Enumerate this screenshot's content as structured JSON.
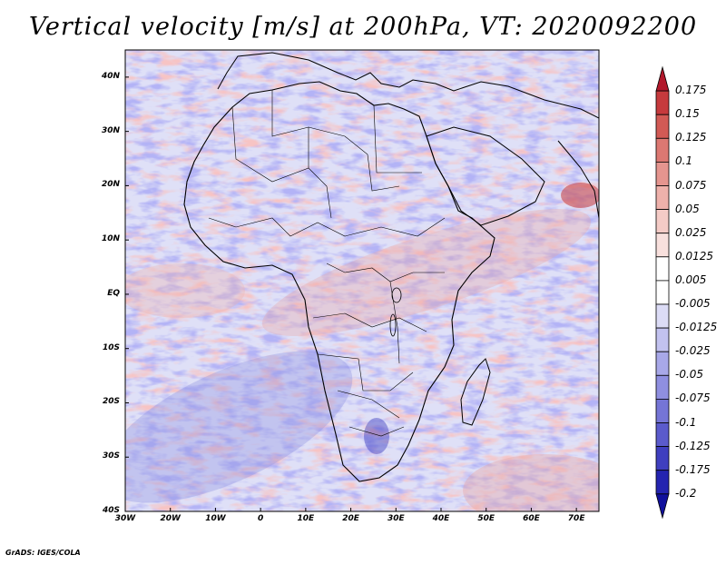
{
  "title": "Vertical velocity [m/s] at 200hPa, VT: 2020092200",
  "credit": "GrADS: IGES/COLA",
  "map": {
    "lat_labels": [
      "40N",
      "30N",
      "20N",
      "10N",
      "EQ",
      "10S",
      "20S",
      "30S",
      "40S"
    ],
    "lon_labels": [
      "30W",
      "20W",
      "10W",
      "0",
      "10E",
      "20E",
      "30E",
      "40E",
      "50E",
      "60E",
      "70E"
    ],
    "lat_range": [
      -40,
      45
    ],
    "lon_range": [
      -30,
      75
    ]
  },
  "colorbar": {
    "labels": [
      "0.175",
      "0.15",
      "0.125",
      "0.1",
      "0.075",
      "0.05",
      "0.025",
      "0.0125",
      "0.005",
      "-0.005",
      "-0.0125",
      "-0.025",
      "-0.05",
      "-0.075",
      "-0.1",
      "-0.125",
      "-0.175",
      "-0.2"
    ],
    "colors": [
      "#b2182b",
      "#c63a3d",
      "#d25a55",
      "#dc7872",
      "#e5958f",
      "#eeb1ab",
      "#f4cbc6",
      "#f8e0dd",
      "#ffffff",
      "#ffffff",
      "#dcdcf6",
      "#c2c2ef",
      "#a8a8e8",
      "#8f8fe0",
      "#7575d6",
      "#5b5bcc",
      "#3f3fbf",
      "#2424b0",
      "#10109c"
    ]
  },
  "chart_data": {
    "type": "heatmap",
    "title": "Vertical velocity [m/s] at 200hPa, VT: 2020092200",
    "x_ticks": [
      "30W",
      "20W",
      "10W",
      "0",
      "10E",
      "20E",
      "30E",
      "40E",
      "50E",
      "60E",
      "70E"
    ],
    "y_ticks": [
      "40N",
      "30N",
      "20N",
      "10N",
      "EQ",
      "10S",
      "20S",
      "30S",
      "40S"
    ],
    "levels": [
      -0.2,
      -0.175,
      -0.125,
      -0.1,
      -0.075,
      -0.05,
      -0.025,
      -0.0125,
      -0.005,
      0.005,
      0.0125,
      0.025,
      0.05,
      0.075,
      0.1,
      0.125,
      0.15,
      0.175
    ]
  }
}
